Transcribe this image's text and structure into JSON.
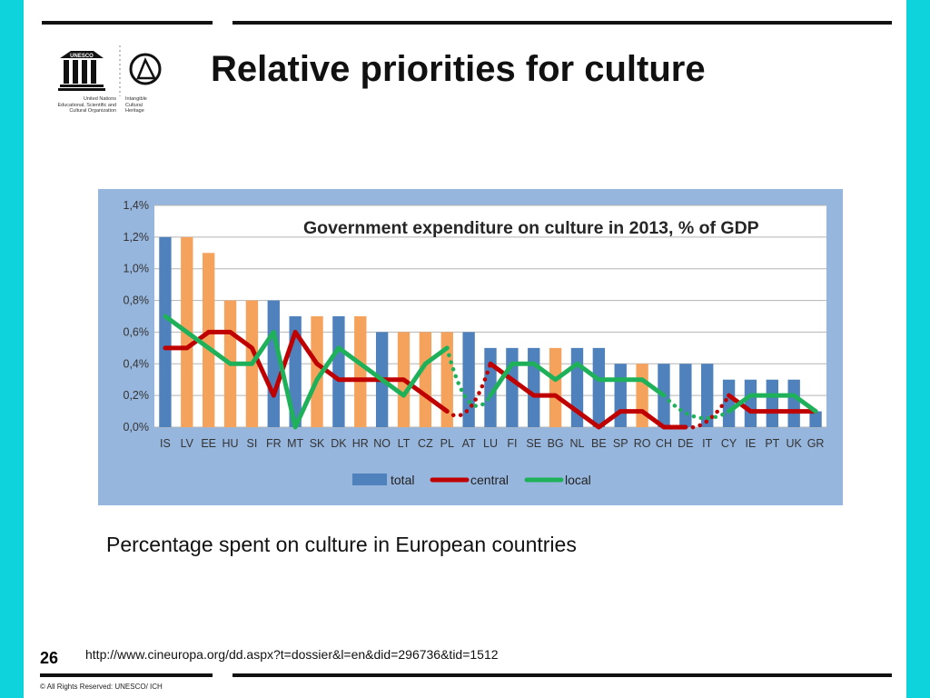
{
  "colors": {
    "side_bar": "#0fd3dc",
    "chart_bg": "#97b6dd",
    "plot_bg": "#ffffff",
    "total": "#4f81bd",
    "total_alt": "#f5a35c",
    "central": "#c00000",
    "local": "#1fb15a"
  },
  "logo": {
    "unesco_mark": "UNESCO",
    "unesco_caption": [
      "United Nations",
      "Educational, Scientific and",
      "Cultural Organization"
    ],
    "ich_caption": [
      "Intangible",
      "Cultural",
      "Heritage"
    ]
  },
  "slide": {
    "title": "Relative priorities for culture",
    "caption": "Percentage spent on culture in European countries",
    "page_number": "26",
    "source_url": "http://www.cineuropa.org/dd.aspx?t=dossier&l=en&did=296736&tid=1512",
    "copyright": "© All Rights Reserved: UNESCO/ ICH"
  },
  "chart_data": {
    "type": "bar",
    "title": "Government expenditure on culture in 2013, % of GDP",
    "xlabel": "",
    "ylabel": "",
    "ylim": [
      0,
      1.4
    ],
    "yticks": [
      "0,0%",
      "0,2%",
      "0,4%",
      "0,6%",
      "0,8%",
      "1,0%",
      "1,2%",
      "1,4%"
    ],
    "grid": true,
    "legend_position": "bottom",
    "categories": [
      "IS",
      "LV",
      "EE",
      "HU",
      "SI",
      "FR",
      "MT",
      "SK",
      "DK",
      "HR",
      "NO",
      "LT",
      "CZ",
      "PL",
      "AT",
      "LU",
      "FI",
      "SE",
      "BG",
      "NL",
      "BE",
      "SP",
      "RO",
      "CH",
      "DE",
      "IT",
      "CY",
      "IE",
      "PT",
      "UK",
      "GR"
    ],
    "series": [
      {
        "name": "total",
        "kind": "bar",
        "values": [
          1.2,
          1.2,
          1.1,
          0.8,
          0.8,
          0.8,
          0.7,
          0.7,
          0.7,
          0.7,
          0.6,
          0.6,
          0.6,
          0.6,
          0.6,
          0.5,
          0.5,
          0.5,
          0.5,
          0.5,
          0.5,
          0.4,
          0.4,
          0.4,
          0.4,
          0.4,
          0.3,
          0.3,
          0.3,
          0.3,
          0.1
        ]
      },
      {
        "name": "central",
        "kind": "line",
        "values": [
          0.5,
          0.5,
          0.6,
          0.6,
          0.5,
          0.2,
          0.6,
          0.4,
          0.3,
          0.3,
          0.3,
          0.3,
          0.2,
          0.1,
          null,
          0.4,
          0.3,
          0.2,
          0.2,
          0.1,
          0.0,
          0.1,
          0.1,
          0.0,
          0.0,
          null,
          0.2,
          0.1,
          0.1,
          0.1,
          0.1
        ]
      },
      {
        "name": "local",
        "kind": "line",
        "values": [
          0.7,
          0.6,
          0.5,
          0.4,
          0.4,
          0.6,
          0.0,
          0.3,
          0.5,
          0.4,
          0.3,
          0.2,
          0.4,
          0.5,
          null,
          0.2,
          0.4,
          0.4,
          0.3,
          0.4,
          0.3,
          0.3,
          0.3,
          0.2,
          null,
          null,
          0.1,
          0.2,
          0.2,
          0.2,
          0.1
        ]
      }
    ],
    "bar_alt_categories": [
      "LV",
      "EE",
      "HU",
      "SI",
      "SK",
      "HR",
      "LT",
      "CZ",
      "PL",
      "BG",
      "RO"
    ]
  }
}
